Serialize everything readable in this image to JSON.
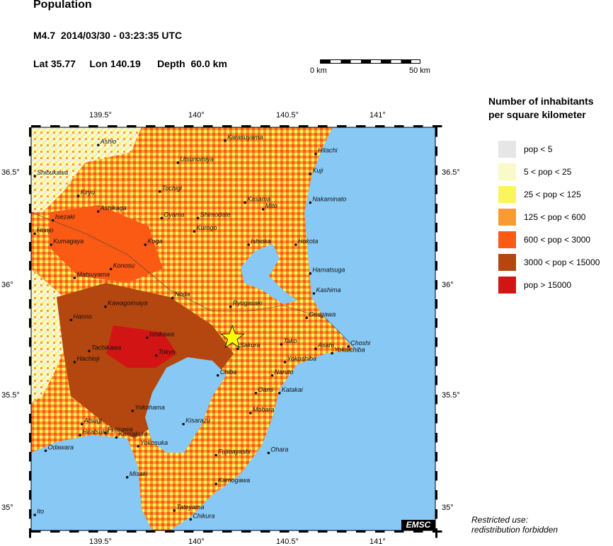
{
  "header": {
    "title": "Population",
    "event": "M4.7  2014/03/30 - 03:23:35 UTC",
    "location": "Lat 35.77     Lon 140.19      Depth  60.0 km"
  },
  "scale_bar": {
    "start_label": "0 km",
    "end_label": "50 km"
  },
  "legend": {
    "title_line1": "Number of inhabitants",
    "title_line2": "per square kilometer",
    "items": [
      {
        "label": "pop < 5",
        "color": "#e6e6e6"
      },
      {
        "label": "5 < pop < 25",
        "color": "#fafac8"
      },
      {
        "label": "25 < pop < 125",
        "color": "#faf55a"
      },
      {
        "label": "125 < pop < 600",
        "color": "#fa9b32"
      },
      {
        "label": "600 < pop < 3000",
        "color": "#fa5a14"
      },
      {
        "label": "3000 < pop < 15000",
        "color": "#b4460f"
      },
      {
        "label": "pop > 15000",
        "color": "#d21414"
      }
    ]
  },
  "axes": {
    "lon_ticks": [
      "139.5°",
      "140°",
      "140.5°",
      "141°"
    ],
    "lat_ticks": [
      "36.5°",
      "36°",
      "35.5°",
      "35°"
    ]
  },
  "epicenter": {
    "lat": 35.77,
    "lon": 140.19,
    "color": "#ffff00"
  },
  "ocean_color": "#87c8f5",
  "branding": "EMSC",
  "notice": {
    "line1": "Restricted use:",
    "line2": "redistribution forbidden"
  },
  "cities": [
    {
      "name": "Karasuyama",
      "lat": 36.66,
      "lon": 140.15
    },
    {
      "name": "Ashio",
      "lat": 36.64,
      "lon": 139.45
    },
    {
      "name": "Hitachi",
      "lat": 36.6,
      "lon": 140.65
    },
    {
      "name": "Utsunomiya",
      "lat": 36.56,
      "lon": 139.89
    },
    {
      "name": "Shibukawa",
      "lat": 36.5,
      "lon": 139.1
    },
    {
      "name": "Kuji",
      "lat": 36.51,
      "lon": 140.62
    },
    {
      "name": "Tochigi",
      "lat": 36.43,
      "lon": 139.79
    },
    {
      "name": "Kiryu",
      "lat": 36.41,
      "lon": 139.34
    },
    {
      "name": "Nakaminato",
      "lat": 36.38,
      "lon": 140.62
    },
    {
      "name": "Kasama",
      "lat": 36.38,
      "lon": 140.26
    },
    {
      "name": "Mito",
      "lat": 36.35,
      "lon": 140.36
    },
    {
      "name": "Ashikaga",
      "lat": 36.34,
      "lon": 139.45
    },
    {
      "name": "Oyama",
      "lat": 36.31,
      "lon": 139.8
    },
    {
      "name": "Shimodate",
      "lat": 36.31,
      "lon": 140.0
    },
    {
      "name": "Isezaki",
      "lat": 36.3,
      "lon": 139.2
    },
    {
      "name": "Kurogo",
      "lat": 36.25,
      "lon": 139.98
    },
    {
      "name": "Honjo",
      "lat": 36.24,
      "lon": 139.1
    },
    {
      "name": "Koga",
      "lat": 36.19,
      "lon": 139.71
    },
    {
      "name": "Kumagaya",
      "lat": 36.19,
      "lon": 139.19
    },
    {
      "name": "Ishioka",
      "lat": 36.19,
      "lon": 140.28
    },
    {
      "name": "Hokota",
      "lat": 36.19,
      "lon": 140.54
    },
    {
      "name": "Konosu",
      "lat": 36.08,
      "lon": 139.52
    },
    {
      "name": "Hamatsuga",
      "lat": 36.06,
      "lon": 140.62
    },
    {
      "name": "Matsuyama",
      "lat": 36.04,
      "lon": 139.32
    },
    {
      "name": "Kashima",
      "lat": 35.97,
      "lon": 140.64
    },
    {
      "name": "Noda",
      "lat": 35.95,
      "lon": 139.86
    },
    {
      "name": "Kawagoimaya",
      "lat": 35.91,
      "lon": 139.49
    },
    {
      "name": "Ryugasaki",
      "lat": 35.91,
      "lon": 140.18
    },
    {
      "name": "Omigawa",
      "lat": 35.86,
      "lon": 140.6
    },
    {
      "name": "Hanno",
      "lat": 35.85,
      "lon": 139.3
    },
    {
      "name": "Ishikawa",
      "lat": 35.77,
      "lon": 139.72
    },
    {
      "name": "Tako",
      "lat": 35.74,
      "lon": 140.46
    },
    {
      "name": "Choshi",
      "lat": 35.73,
      "lon": 140.83
    },
    {
      "name": "Tachikawa",
      "lat": 35.71,
      "lon": 139.4
    },
    {
      "name": "Sakura",
      "lat": 35.72,
      "lon": 140.22
    },
    {
      "name": "Asahi",
      "lat": 35.72,
      "lon": 140.65
    },
    {
      "name": "Yokaichiba",
      "lat": 35.7,
      "lon": 140.74
    },
    {
      "name": "Tokyo",
      "lat": 35.69,
      "lon": 139.77
    },
    {
      "name": "Hachioji",
      "lat": 35.66,
      "lon": 139.32
    },
    {
      "name": "Yokoshiba",
      "lat": 35.66,
      "lon": 140.48
    },
    {
      "name": "Chiba",
      "lat": 35.6,
      "lon": 140.11
    },
    {
      "name": "Naruto",
      "lat": 35.6,
      "lon": 140.41
    },
    {
      "name": "Oami",
      "lat": 35.52,
      "lon": 140.32
    },
    {
      "name": "Katakai",
      "lat": 35.52,
      "lon": 140.45
    },
    {
      "name": "Yokohama",
      "lat": 35.44,
      "lon": 139.64
    },
    {
      "name": "Mobara",
      "lat": 35.43,
      "lon": 140.29
    },
    {
      "name": "Atsugi",
      "lat": 35.38,
      "lon": 139.36
    },
    {
      "name": "Kisarazu",
      "lat": 35.38,
      "lon": 139.92
    },
    {
      "name": "Kamakura",
      "lat": 35.32,
      "lon": 139.55
    },
    {
      "name": "Hiratsuka",
      "lat": 35.33,
      "lon": 139.35
    },
    {
      "name": "Fujisawa",
      "lat": 35.34,
      "lon": 139.49
    },
    {
      "name": "Yokosuka",
      "lat": 35.28,
      "lon": 139.67
    },
    {
      "name": "Odawara",
      "lat": 35.26,
      "lon": 139.16
    },
    {
      "name": "Ohara",
      "lat": 35.25,
      "lon": 140.39
    },
    {
      "name": "Fujioayashi",
      "lat": 35.24,
      "lon": 140.1
    },
    {
      "name": "Misaki",
      "lat": 35.14,
      "lon": 139.61
    },
    {
      "name": "Kamogawa",
      "lat": 35.11,
      "lon": 140.1
    },
    {
      "name": "Ito",
      "lat": 34.97,
      "lon": 139.1
    },
    {
      "name": "Tateyama",
      "lat": 34.99,
      "lon": 139.87
    },
    {
      "name": "Chikura",
      "lat": 34.95,
      "lon": 139.96
    }
  ]
}
